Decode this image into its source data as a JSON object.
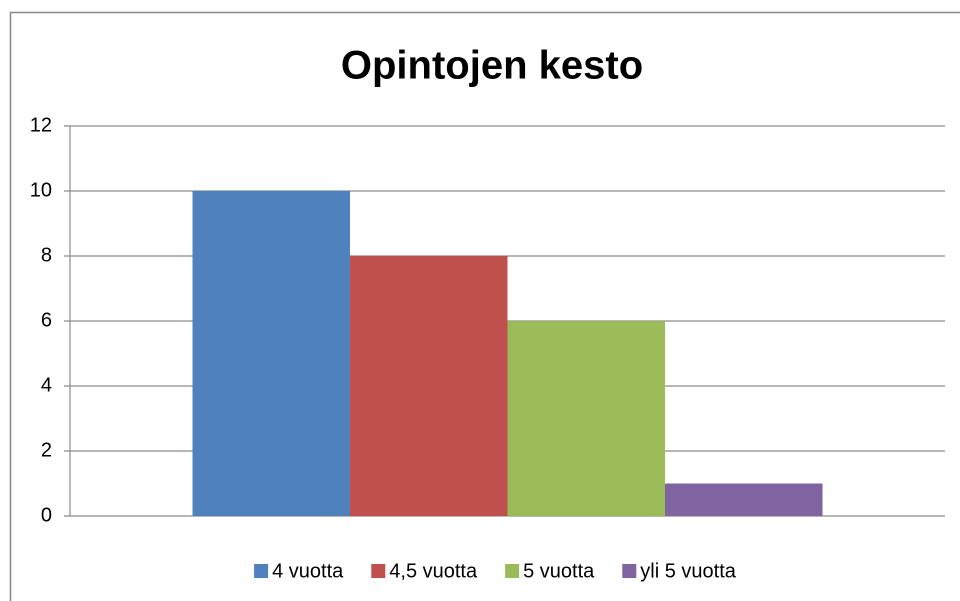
{
  "chart_data": {
    "type": "bar",
    "title": "Opintojen kesto",
    "categories": [
      null
    ],
    "series": [
      {
        "name": "4 vuotta",
        "color": "#4f81bd",
        "values": [
          10
        ]
      },
      {
        "name": "4,5 vuotta",
        "color": "#c0504d",
        "values": [
          8
        ]
      },
      {
        "name": "5 vuotta",
        "color": "#9bbb59",
        "values": [
          6
        ]
      },
      {
        "name": "yli 5 vuotta",
        "color": "#8064a2",
        "values": [
          1
        ]
      }
    ],
    "ylim": [
      0,
      12
    ],
    "yticks": [
      0,
      2,
      4,
      6,
      8,
      10,
      12
    ],
    "grid": true,
    "legend": "bottom"
  }
}
